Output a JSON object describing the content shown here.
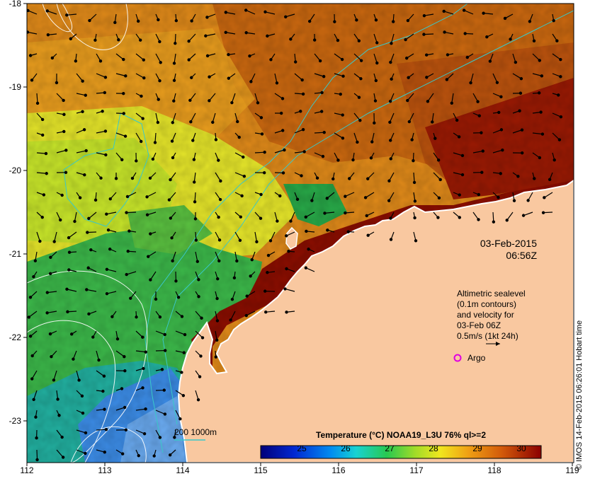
{
  "map": {
    "lon_ticks": [
      "112",
      "113",
      "114",
      "115",
      "116",
      "117",
      "118",
      "119"
    ],
    "lat_ticks": [
      "-18",
      "-19",
      "-20",
      "-21",
      "-22",
      "-23"
    ],
    "lon_range": [
      112,
      119
    ],
    "lat_range": [
      -18,
      -23.5
    ],
    "date": "03-Feb-2015",
    "time": "06:56Z",
    "legend_lines": [
      "Altimetric sealevel",
      "(0.1m contours)",
      "and velocity for",
      "03-Feb 06Z",
      "0.5m/s (1kt 24h)"
    ],
    "argo_label": "Argo",
    "isobath_label": "200  1000m",
    "credit": "© IMOS 14-Feb-2015 06:26:01 Hobart time"
  },
  "colorbar": {
    "title": "Temperature (°C) NOAA19_L3U 76% ql>=2",
    "ticks": [
      "25",
      "26",
      "27",
      "28",
      "29",
      "30"
    ],
    "range": [
      24,
      30.5
    ]
  },
  "colors": {
    "land": "#f9c8a0",
    "sst_hot": "#8b0a00",
    "sst_warm": "#dc7a12",
    "sst_mid": "#c8e62a",
    "sst_cool": "#22b050",
    "sst_cold": "#1e78e6",
    "isobath": "#3ac8c8",
    "contour": "#ffffff",
    "argo": "#e000e0"
  }
}
